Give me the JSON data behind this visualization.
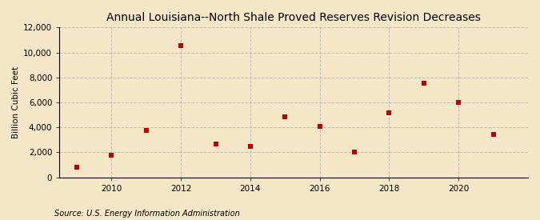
{
  "title": "Annual Louisiana--North Shale Proved Reserves Revision Decreases",
  "ylabel": "Billion Cubic Feet",
  "source": "Source: U.S. Energy Information Administration",
  "background_color": "#f5e6c8",
  "marker_color": "#bb0000",
  "grid_color": "#bbbbbb",
  "years": [
    2009,
    2010,
    2011,
    2012,
    2013,
    2014,
    2015,
    2016,
    2017,
    2018,
    2019,
    2020,
    2021
  ],
  "values": [
    800,
    1800,
    3750,
    10550,
    2650,
    2500,
    4850,
    4050,
    2050,
    5200,
    7550,
    6000,
    3450
  ],
  "ylim": [
    0,
    12000
  ],
  "yticks": [
    0,
    2000,
    4000,
    6000,
    8000,
    10000,
    12000
  ],
  "xticks": [
    2010,
    2012,
    2014,
    2016,
    2018,
    2020
  ],
  "xlim": [
    2008.5,
    2022
  ],
  "title_fontsize": 10,
  "label_fontsize": 7.5,
  "tick_fontsize": 7.5,
  "source_fontsize": 7
}
